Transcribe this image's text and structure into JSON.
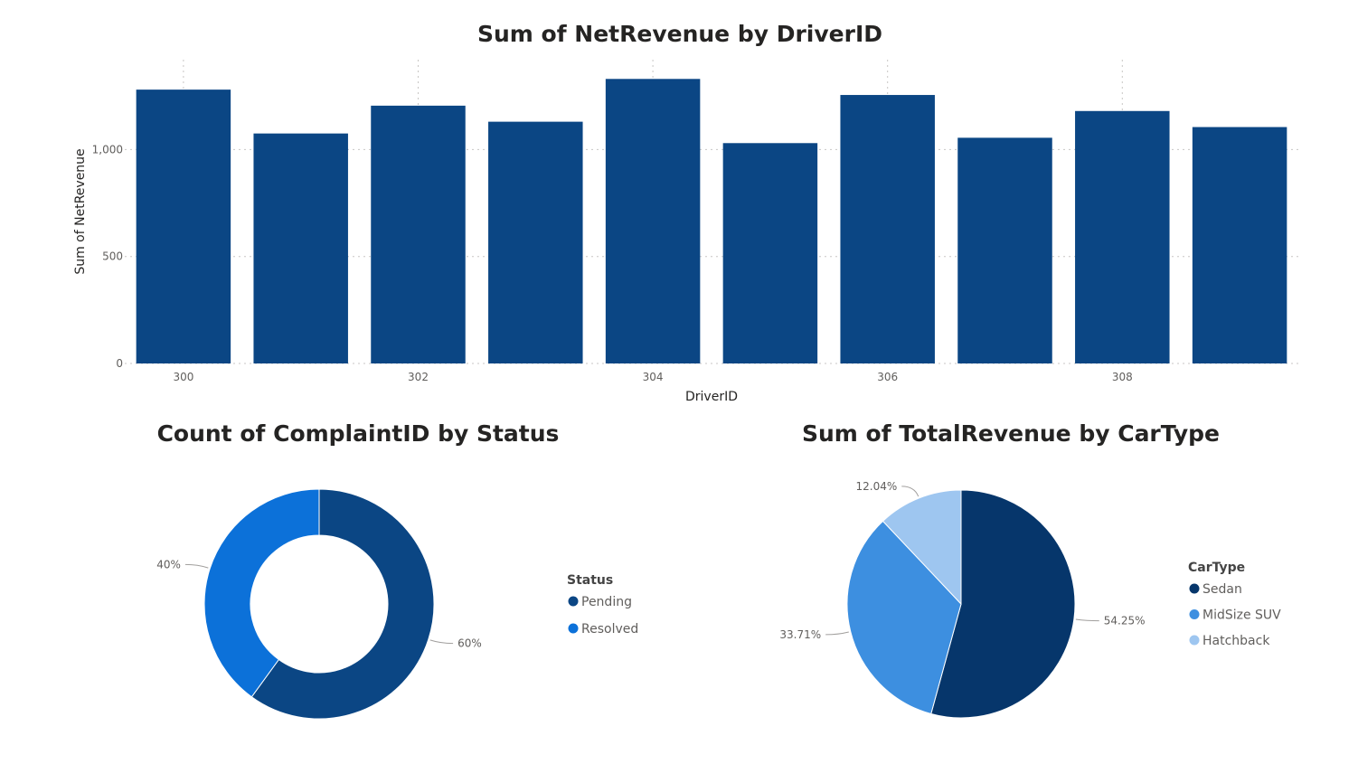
{
  "chart_data": [
    {
      "type": "bar",
      "title": "Sum of NetRevenue by DriverID",
      "xlabel": "DriverID",
      "ylabel": "Sum of NetRevenue",
      "x": [
        300,
        301,
        302,
        303,
        304,
        305,
        306,
        307,
        308,
        309
      ],
      "values": [
        1280,
        1075,
        1205,
        1130,
        1330,
        1030,
        1255,
        1055,
        1180,
        1105
      ],
      "x_tick_labels": [
        "300",
        "302",
        "304",
        "306",
        "308"
      ],
      "y_tick_labels": [
        "0",
        "500",
        "1,000"
      ],
      "y_ticks": [
        0,
        500,
        1000
      ],
      "ylim": [
        0,
        1420
      ],
      "grid": true,
      "color": "#0b4684"
    },
    {
      "type": "pie",
      "subtype": "donut",
      "title": "Count of ComplaintID by Status",
      "legend_title": "Status",
      "legend_position": "right",
      "slices": [
        {
          "label": "Pending",
          "value": 60,
          "display": "60%",
          "color": "#0b4684"
        },
        {
          "label": "Resolved",
          "value": 40,
          "display": "40%",
          "color": "#0c71d9"
        }
      ]
    },
    {
      "type": "pie",
      "title": "Sum of TotalRevenue by CarType",
      "legend_title": "CarType",
      "legend_position": "right",
      "slices": [
        {
          "label": "Sedan",
          "value": 54.25,
          "display": "54.25%",
          "color": "#06366b"
        },
        {
          "label": "MidSize SUV",
          "value": 33.71,
          "display": "33.71%",
          "color": "#3d8fe0"
        },
        {
          "label": "Hatchback",
          "value": 12.04,
          "display": "12.04%",
          "color": "#9ec6f0"
        }
      ]
    }
  ]
}
